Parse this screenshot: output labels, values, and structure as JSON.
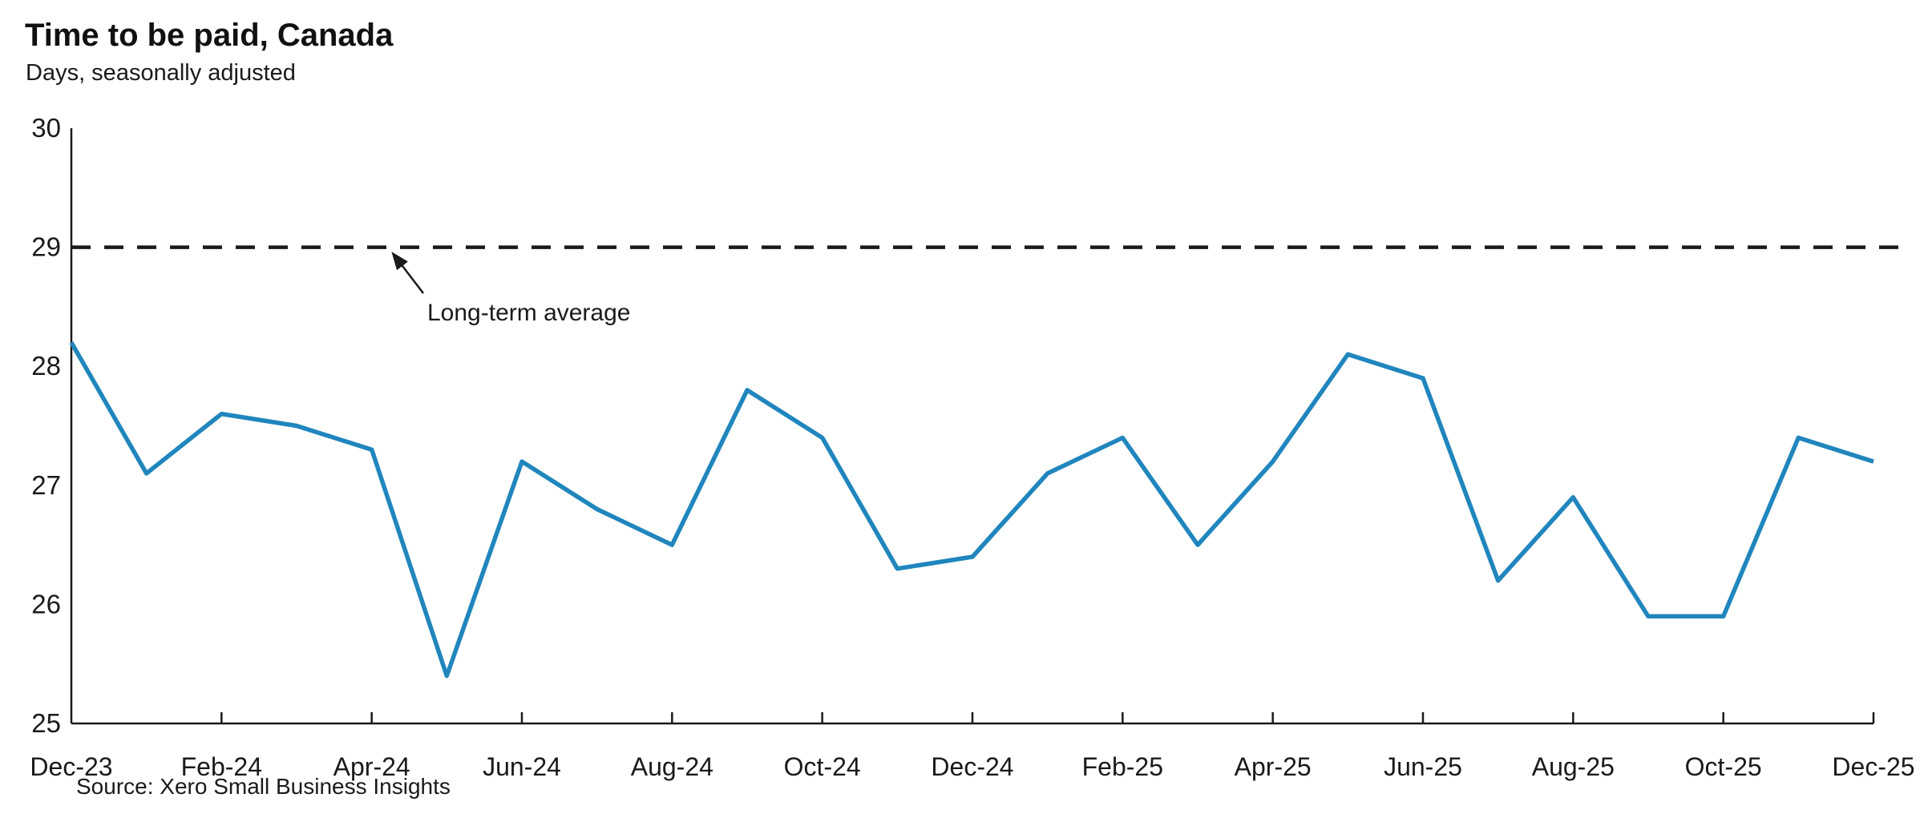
{
  "chart": {
    "title": "Time to be paid, Canada",
    "subtitle": "Days, seasonally adjusted",
    "annotation": "Long-term average",
    "source": "Source: Xero Small Business Insights"
  },
  "chart_data": {
    "type": "line",
    "title": "Time to be paid, Canada",
    "subtitle": "Days, seasonally adjusted",
    "x": [
      "Dec-23",
      "Jan-24",
      "Feb-24",
      "Mar-24",
      "Apr-24",
      "May-24",
      "Jun-24",
      "Jul-24",
      "Aug-24",
      "Sep-24",
      "Oct-24",
      "Nov-24",
      "Dec-24",
      "Jan-25",
      "Feb-25",
      "Mar-25",
      "Apr-25",
      "May-25",
      "Jun-25",
      "Jul-25",
      "Aug-25",
      "Sep-25",
      "Oct-25",
      "Nov-25",
      "Dec-25"
    ],
    "values": [
      28.2,
      27.1,
      27.6,
      27.5,
      27.3,
      25.4,
      27.2,
      26.8,
      26.5,
      27.8,
      27.4,
      26.3,
      26.4,
      27.1,
      27.4,
      26.5,
      27.2,
      28.1,
      27.9,
      26.2,
      26.9,
      25.9,
      25.9,
      27.4,
      27.2
    ],
    "x_tick_labels": [
      "Dec-23",
      "Feb-24",
      "Apr-24",
      "Jun-24",
      "Aug-24",
      "Oct-24",
      "Dec-24",
      "Feb-25",
      "Apr-25",
      "Jun-25",
      "Aug-25",
      "Oct-25",
      "Dec-25"
    ],
    "y_ticks": [
      25,
      26,
      27,
      28,
      29,
      30
    ],
    "ylim": [
      25,
      30
    ],
    "xlabel": "",
    "ylabel": "Days, seasonally adjusted",
    "grid": false,
    "legend": "none",
    "reference_line": {
      "value": 29,
      "label": "Long-term average",
      "style": "dashed"
    },
    "line_color": "#2086bd",
    "axis_color": "#1a1a1a",
    "source": "Source: Xero Small Business Insights"
  }
}
